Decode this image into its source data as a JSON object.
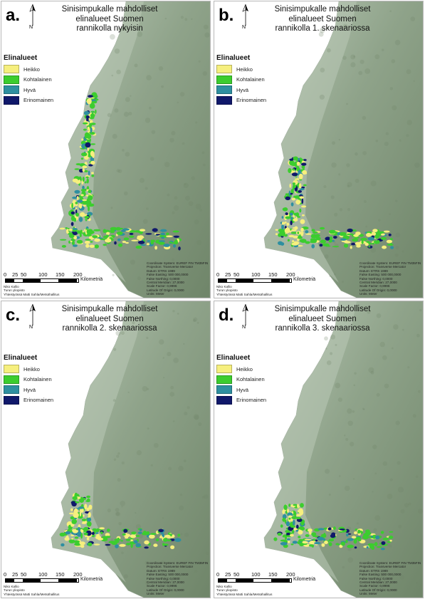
{
  "colors": {
    "sea": "#ffffff",
    "land": "#8fa38a",
    "land_light": "#b9c8b6",
    "land_dark": "#6f8569",
    "heikko": "#f6ef7e",
    "kohtalainen": "#3ccd2e",
    "hyva": "#2e8fa0",
    "erinomainen": "#10186a"
  },
  "legend": {
    "title": "Elinalueet",
    "items": [
      {
        "label": "Heikko",
        "color": "#f6ef7e"
      },
      {
        "label": "Kohtalainen",
        "color": "#3ccd2e"
      },
      {
        "label": "Hyvä",
        "color": "#2e8fa0"
      },
      {
        "label": "Erinomainen",
        "color": "#10186a"
      }
    ]
  },
  "north_label": "N",
  "scale": {
    "ticks": [
      "0",
      "25",
      "50",
      "100",
      "150",
      "200"
    ],
    "unit": "Kilometriä"
  },
  "credits": [
    "Niko Kallio",
    "Turun yliopisto",
    "Yhteistyössä Matti Sahla/Metsähallitus"
  ],
  "coordinate_info": [
    "Coordinate System: EUREF FIN TM35FIN",
    "Projection: Transverse Mercator",
    "Datum: ETRS 1989",
    "False Easting: 500 000,0000",
    "False Northing: 0,0000",
    "Central Meridian: 27,0000",
    "Scale Factor: 0,9996",
    "Latitude Of Origin: 0,0000",
    "Units: Meter"
  ],
  "panels": [
    {
      "letter": "a.",
      "title_lines": [
        "Sinisimpukalle mahdolliset",
        "elinalueet Suomen",
        "rannikolla nykyisin"
      ],
      "habitat_extent": 1.0
    },
    {
      "letter": "b.",
      "title_lines": [
        "Sinisimpukalle mahdolliset",
        "elinalueet Suomen",
        "rannikolla 1. skenaariossa"
      ],
      "habitat_extent": 0.55
    },
    {
      "letter": "c.",
      "title_lines": [
        "Sinisimpukalle mahdolliset",
        "elinalueet Suomen",
        "rannikolla 2. skenaariossa"
      ],
      "habitat_extent": 0.3
    },
    {
      "letter": "d.",
      "title_lines": [
        "Sinisimpukalle mahdolliset",
        "elinalueet Suomen",
        "rannikolla 3. skenaariossa"
      ],
      "habitat_extent": 0.22
    }
  ]
}
